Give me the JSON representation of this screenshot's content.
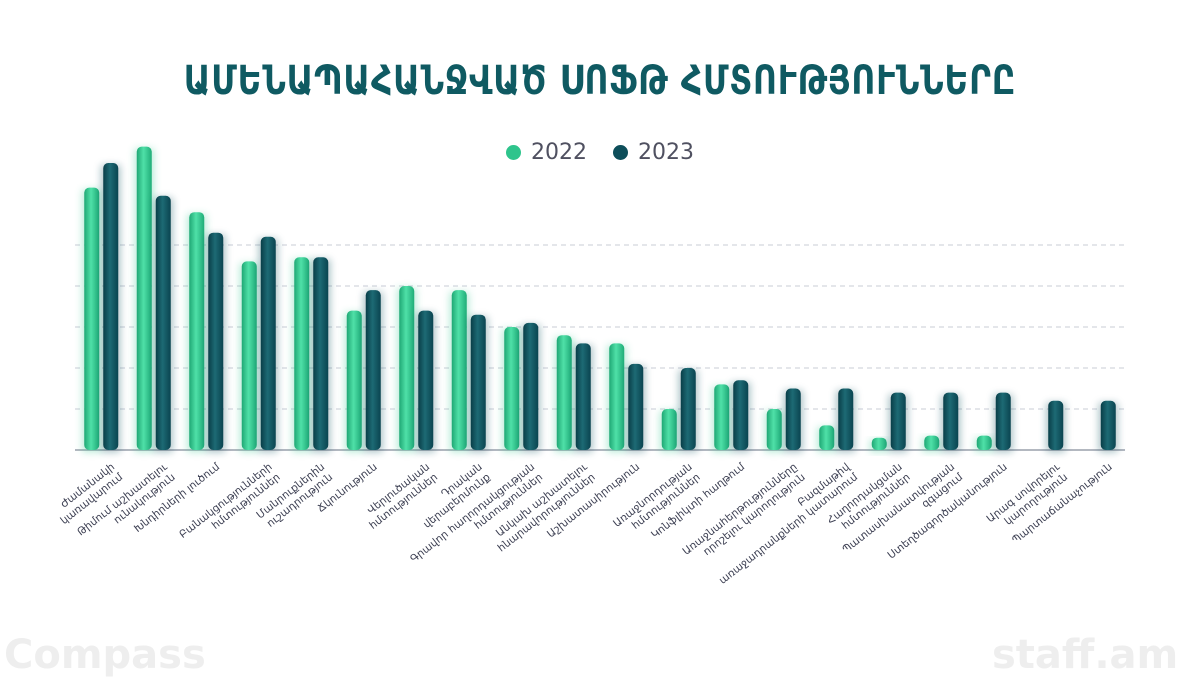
{
  "chart_data": {
    "type": "bar",
    "title": "ԱՄԵՆԱՊԱՀԱՆՋՎԱԾ ՍՈՖԹ ՀՄՏՈՒԹՅՈՒՆՆԵՐԸ",
    "legend_position": "top-center",
    "grid": true,
    "ylim": [
      0,
      10
    ],
    "series": [
      {
        "name": "2022",
        "color": "#2ec48c"
      },
      {
        "name": "2023",
        "color": "#0d4e5a"
      }
    ],
    "categories": [
      {
        "lines": [
          "Ժամանակի",
          "կառավարում"
        ],
        "v2022": 6.4,
        "v2023": 7.0
      },
      {
        "lines": [
          "Թիմում աշխատելու",
          "ունակություն"
        ],
        "v2022": 7.4,
        "v2023": 6.2
      },
      {
        "lines": [
          "Խնդիրների լուծում"
        ],
        "v2022": 5.8,
        "v2023": 5.3
      },
      {
        "lines": [
          "Բանակցությունների",
          "հմտություններ"
        ],
        "v2022": 4.6,
        "v2023": 5.2
      },
      {
        "lines": [
          "Մանրուքներին",
          "ուշադրություն"
        ],
        "v2022": 4.7,
        "v2023": 4.7
      },
      {
        "lines": [
          "Ճկունություն"
        ],
        "v2022": 3.4,
        "v2023": 3.9
      },
      {
        "lines": [
          "Վերլուծական",
          "հմտություններ"
        ],
        "v2022": 4.0,
        "v2023": 3.4
      },
      {
        "lines": [
          "Դրական",
          "վերաբերմունք"
        ],
        "v2022": 3.9,
        "v2023": 3.3
      },
      {
        "lines": [
          "Գրավոր հաղորդակցության",
          "հմտություններ"
        ],
        "v2022": 3.0,
        "v2023": 3.1
      },
      {
        "lines": [
          "Անկախ աշխատելու",
          "հնարավորություններ"
        ],
        "v2022": 2.8,
        "v2023": 2.6
      },
      {
        "lines": [
          "Աշխատասիրություն"
        ],
        "v2022": 2.6,
        "v2023": 2.1
      },
      {
        "lines": [
          "Առաջնորդության",
          "հմտություններ"
        ],
        "v2022": 1.0,
        "v2023": 2.0
      },
      {
        "lines": [
          "Կոնֆլիկտի հաղթում"
        ],
        "v2022": 1.6,
        "v2023": 1.7
      },
      {
        "lines": [
          "Առաջնահերթությունները",
          "որոշելու կարողություն"
        ],
        "v2022": 1.0,
        "v2023": 1.5
      },
      {
        "lines": [
          "Բազմաթիվ",
          "առաջադրանքների կատարում"
        ],
        "v2022": 0.6,
        "v2023": 1.5
      },
      {
        "lines": [
          "Հաղորդակցման",
          "հմտություններ"
        ],
        "v2022": 0.3,
        "v2023": 1.4
      },
      {
        "lines": [
          "Պատասխանատվության",
          "զգացում"
        ],
        "v2022": 0.35,
        "v2023": 1.4
      },
      {
        "lines": [
          "Ստեղծագործականություն"
        ],
        "v2022": 0.35,
        "v2023": 1.4
      },
      {
        "lines": [
          "Արագ սովորելու",
          "կարողություն"
        ],
        "v2022": 0,
        "v2023": 1.2
      },
      {
        "lines": [
          "Պարտաճանաչություն"
        ],
        "v2022": 0,
        "v2023": 1.2
      }
    ]
  },
  "watermarks": {
    "left": "Compass",
    "right": "staff.am"
  }
}
